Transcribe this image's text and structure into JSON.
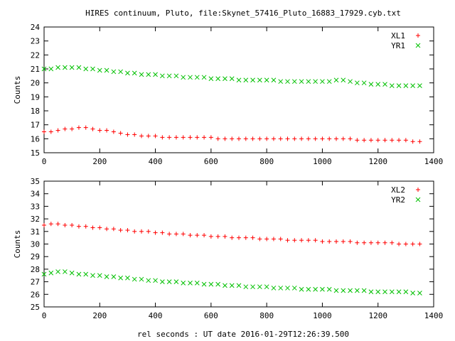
{
  "figure": {
    "title": "HIRES continuum, Pluto, file:Skynet_57416_Pluto_16883_17929.cyb.txt",
    "xlabel": "rel seconds : UT date 2016-01-29T12:26:39.500"
  },
  "colors": {
    "red": "#ff0000",
    "green": "#00c000",
    "axis": "#000000"
  },
  "chart_data": [
    {
      "type": "scatter",
      "title": "HIRES continuum, Pluto, file:Skynet_57416_Pluto_16883_17929.cyb.txt",
      "xlabel": "",
      "ylabel": "Counts",
      "xlim": [
        0,
        1400
      ],
      "ylim": [
        15,
        24
      ],
      "xticks": [
        0,
        200,
        400,
        600,
        800,
        1000,
        1200,
        1400
      ],
      "yticks": [
        15,
        16,
        17,
        18,
        19,
        20,
        21,
        22,
        23,
        24
      ],
      "legend_position": "top-right",
      "series": [
        {
          "name": "XL1",
          "marker": "plus",
          "color": "#ff0000",
          "x": [
            0,
            25,
            50,
            75,
            100,
            125,
            150,
            175,
            200,
            225,
            250,
            275,
            300,
            325,
            350,
            375,
            400,
            425,
            450,
            475,
            500,
            525,
            550,
            575,
            600,
            625,
            650,
            675,
            700,
            725,
            750,
            775,
            800,
            825,
            850,
            875,
            900,
            925,
            950,
            975,
            1000,
            1025,
            1050,
            1075,
            1100,
            1125,
            1150,
            1175,
            1200,
            1225,
            1250,
            1275,
            1300,
            1325,
            1350
          ],
          "y": [
            16.5,
            16.5,
            16.6,
            16.7,
            16.7,
            16.8,
            16.8,
            16.7,
            16.6,
            16.6,
            16.5,
            16.4,
            16.3,
            16.3,
            16.2,
            16.2,
            16.2,
            16.1,
            16.1,
            16.1,
            16.1,
            16.1,
            16.1,
            16.1,
            16.1,
            16.0,
            16.0,
            16.0,
            16.0,
            16.0,
            16.0,
            16.0,
            16.0,
            16.0,
            16.0,
            16.0,
            16.0,
            16.0,
            16.0,
            16.0,
            16.0,
            16.0,
            16.0,
            16.0,
            16.0,
            15.9,
            15.9,
            15.9,
            15.9,
            15.9,
            15.9,
            15.9,
            15.9,
            15.8,
            15.8
          ]
        },
        {
          "name": "YR1",
          "marker": "cross",
          "color": "#00c000",
          "x": [
            0,
            25,
            50,
            75,
            100,
            125,
            150,
            175,
            200,
            225,
            250,
            275,
            300,
            325,
            350,
            375,
            400,
            425,
            450,
            475,
            500,
            525,
            550,
            575,
            600,
            625,
            650,
            675,
            700,
            725,
            750,
            775,
            800,
            825,
            850,
            875,
            900,
            925,
            950,
            975,
            1000,
            1025,
            1050,
            1075,
            1100,
            1125,
            1150,
            1175,
            1200,
            1225,
            1250,
            1275,
            1300,
            1325,
            1350
          ],
          "y": [
            21.0,
            21.0,
            21.1,
            21.1,
            21.1,
            21.1,
            21.0,
            21.0,
            20.9,
            20.9,
            20.8,
            20.8,
            20.7,
            20.7,
            20.6,
            20.6,
            20.6,
            20.5,
            20.5,
            20.5,
            20.4,
            20.4,
            20.4,
            20.4,
            20.3,
            20.3,
            20.3,
            20.3,
            20.2,
            20.2,
            20.2,
            20.2,
            20.2,
            20.2,
            20.1,
            20.1,
            20.1,
            20.1,
            20.1,
            20.1,
            20.1,
            20.1,
            20.2,
            20.2,
            20.1,
            20.0,
            20.0,
            19.9,
            19.9,
            19.9,
            19.8,
            19.8,
            19.8,
            19.8,
            19.8
          ]
        }
      ]
    },
    {
      "type": "scatter",
      "title": "",
      "xlabel": "rel seconds : UT date 2016-01-29T12:26:39.500",
      "ylabel": "Counts",
      "xlim": [
        0,
        1400
      ],
      "ylim": [
        25,
        35
      ],
      "xticks": [
        0,
        200,
        400,
        600,
        800,
        1000,
        1200,
        1400
      ],
      "yticks": [
        25,
        26,
        27,
        28,
        29,
        30,
        31,
        32,
        33,
        34,
        35
      ],
      "legend_position": "top-right",
      "series": [
        {
          "name": "XL2",
          "marker": "plus",
          "color": "#ff0000",
          "x": [
            0,
            25,
            50,
            75,
            100,
            125,
            150,
            175,
            200,
            225,
            250,
            275,
            300,
            325,
            350,
            375,
            400,
            425,
            450,
            475,
            500,
            525,
            550,
            575,
            600,
            625,
            650,
            675,
            700,
            725,
            750,
            775,
            800,
            825,
            850,
            875,
            900,
            925,
            950,
            975,
            1000,
            1025,
            1050,
            1075,
            1100,
            1125,
            1150,
            1175,
            1200,
            1225,
            1250,
            1275,
            1300,
            1325,
            1350
          ],
          "y": [
            31.5,
            31.6,
            31.6,
            31.5,
            31.5,
            31.4,
            31.4,
            31.3,
            31.3,
            31.2,
            31.2,
            31.1,
            31.1,
            31.0,
            31.0,
            31.0,
            30.9,
            30.9,
            30.8,
            30.8,
            30.8,
            30.7,
            30.7,
            30.7,
            30.6,
            30.6,
            30.6,
            30.5,
            30.5,
            30.5,
            30.5,
            30.4,
            30.4,
            30.4,
            30.4,
            30.3,
            30.3,
            30.3,
            30.3,
            30.3,
            30.2,
            30.2,
            30.2,
            30.2,
            30.2,
            30.1,
            30.1,
            30.1,
            30.1,
            30.1,
            30.1,
            30.0,
            30.0,
            30.0,
            30.0
          ]
        },
        {
          "name": "YR2",
          "marker": "cross",
          "color": "#00c000",
          "x": [
            0,
            25,
            50,
            75,
            100,
            125,
            150,
            175,
            200,
            225,
            250,
            275,
            300,
            325,
            350,
            375,
            400,
            425,
            450,
            475,
            500,
            525,
            550,
            575,
            600,
            625,
            650,
            675,
            700,
            725,
            750,
            775,
            800,
            825,
            850,
            875,
            900,
            925,
            950,
            975,
            1000,
            1025,
            1050,
            1075,
            1100,
            1125,
            1150,
            1175,
            1200,
            1225,
            1250,
            1275,
            1300,
            1325,
            1350
          ],
          "y": [
            27.6,
            27.7,
            27.8,
            27.8,
            27.7,
            27.6,
            27.6,
            27.5,
            27.5,
            27.4,
            27.4,
            27.3,
            27.3,
            27.2,
            27.2,
            27.1,
            27.1,
            27.0,
            27.0,
            27.0,
            26.9,
            26.9,
            26.9,
            26.8,
            26.8,
            26.8,
            26.7,
            26.7,
            26.7,
            26.6,
            26.6,
            26.6,
            26.6,
            26.5,
            26.5,
            26.5,
            26.5,
            26.4,
            26.4,
            26.4,
            26.4,
            26.4,
            26.3,
            26.3,
            26.3,
            26.3,
            26.3,
            26.2,
            26.2,
            26.2,
            26.2,
            26.2,
            26.2,
            26.1,
            26.1
          ]
        }
      ]
    }
  ]
}
